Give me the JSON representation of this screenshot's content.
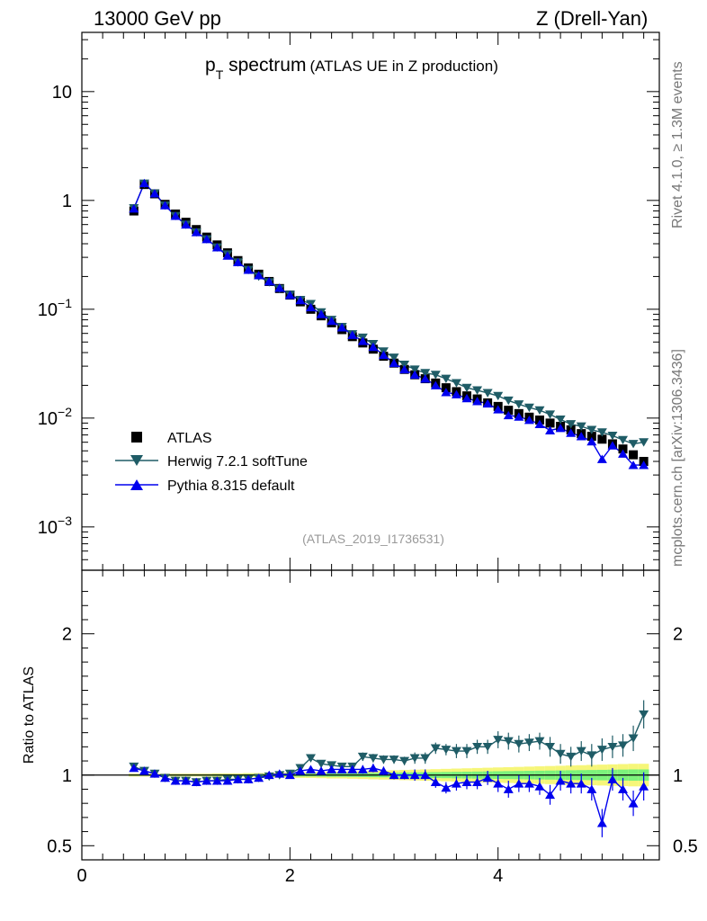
{
  "header": {
    "left": "13000 GeV pp",
    "right": "Z (Drell-Yan)"
  },
  "side_labels": {
    "rivet": "Rivet 4.1.0, ≥ 1.3M events",
    "mcplots": "mcplots.cern.ch [arXiv:1306.3436]"
  },
  "colors": {
    "data": "#000000",
    "herwig": "#1f5c66",
    "pythia": "#0000ee",
    "band_inner": "#7cf27c",
    "band_outer": "#f6f679"
  },
  "chart_data": {
    "type": "line",
    "title_main": "p",
    "title_sub": "T",
    "title_rest": " spectrum",
    "title_note": "(ATLAS UE in Z production)",
    "watermark": "(ATLAS_2019_I1736531)",
    "ylabel_ratio": "Ratio to ATLAS",
    "xlim": [
      0,
      5.55
    ],
    "ylim_main": [
      0.0004,
      35
    ],
    "ylim_ratio": [
      0.4,
      2.45
    ],
    "x_ticks": [
      "0",
      "2",
      "4"
    ],
    "y_ticks_main": [
      {
        "value": 10,
        "base": "10",
        "exp": ""
      },
      {
        "value": 1,
        "base": "1",
        "exp": ""
      },
      {
        "value": 0.1,
        "base": "10",
        "exp": "−1"
      },
      {
        "value": 0.01,
        "base": "10",
        "exp": "−2"
      },
      {
        "value": 0.001,
        "base": "10",
        "exp": "−3"
      }
    ],
    "y_ticks_ratio": [
      {
        "value": 2,
        "label": "2"
      },
      {
        "value": 1,
        "label": "1"
      },
      {
        "value": 0.5,
        "label": "0.5"
      }
    ],
    "legend": [
      "ATLAS",
      "Herwig 7.2.1 softTune",
      "Pythia 8.315 default"
    ],
    "x": [
      0.5,
      0.6,
      0.7,
      0.8,
      0.9,
      1.0,
      1.1,
      1.2,
      1.3,
      1.4,
      1.5,
      1.6,
      1.7,
      1.8,
      1.9,
      2.0,
      2.1,
      2.2,
      2.3,
      2.4,
      2.5,
      2.6,
      2.7,
      2.8,
      2.9,
      3.0,
      3.1,
      3.2,
      3.3,
      3.4,
      3.5,
      3.6,
      3.7,
      3.8,
      3.9,
      4.0,
      4.1,
      4.2,
      4.3,
      4.4,
      4.5,
      4.6,
      4.7,
      4.8,
      4.9,
      5.0,
      5.1,
      5.2,
      5.3,
      5.4
    ],
    "series": [
      {
        "name": "ATLAS",
        "values": [
          0.8,
          1.4,
          1.15,
          0.92,
          0.75,
          0.63,
          0.54,
          0.46,
          0.39,
          0.33,
          0.28,
          0.24,
          0.21,
          0.18,
          0.155,
          0.135,
          0.117,
          0.1,
          0.087,
          0.075,
          0.065,
          0.056,
          0.049,
          0.043,
          0.037,
          0.032,
          0.028,
          0.025,
          0.023,
          0.021,
          0.019,
          0.0175,
          0.016,
          0.015,
          0.0138,
          0.0128,
          0.0118,
          0.011,
          0.0102,
          0.0096,
          0.009,
          0.0084,
          0.0078,
          0.0072,
          0.0068,
          0.0064,
          0.0058,
          0.0052,
          0.0046,
          0.004
        ]
      },
      {
        "name": "Herwig 7.2.1 softTune",
        "values": [
          0.85,
          1.43,
          1.16,
          0.9,
          0.72,
          0.6,
          0.51,
          0.44,
          0.37,
          0.32,
          0.27,
          0.23,
          0.2,
          0.177,
          0.154,
          0.136,
          0.122,
          0.112,
          0.094,
          0.08,
          0.069,
          0.059,
          0.055,
          0.048,
          0.041,
          0.036,
          0.031,
          0.028,
          0.026,
          0.025,
          0.023,
          0.021,
          0.019,
          0.018,
          0.017,
          0.016,
          0.0145,
          0.0134,
          0.0125,
          0.0118,
          0.0108,
          0.0097,
          0.0088,
          0.0084,
          0.0078,
          0.0074,
          0.0069,
          0.0063,
          0.0058,
          0.006
        ]
      },
      {
        "name": "Pythia 8.315 default",
        "values": [
          0.84,
          1.44,
          1.16,
          0.9,
          0.72,
          0.6,
          0.51,
          0.44,
          0.37,
          0.31,
          0.27,
          0.23,
          0.205,
          0.18,
          0.157,
          0.135,
          0.121,
          0.104,
          0.09,
          0.078,
          0.068,
          0.058,
          0.051,
          0.045,
          0.038,
          0.032,
          0.028,
          0.025,
          0.023,
          0.02,
          0.0173,
          0.0165,
          0.0152,
          0.0143,
          0.0136,
          0.012,
          0.0106,
          0.0103,
          0.0096,
          0.0088,
          0.0077,
          0.0081,
          0.0073,
          0.0068,
          0.0061,
          0.0042,
          0.0056,
          0.0047,
          0.0037,
          0.0037
        ]
      }
    ],
    "ratio": {
      "herwig": [
        1.06,
        1.03,
        1.01,
        0.98,
        0.96,
        0.96,
        0.95,
        0.96,
        0.96,
        0.97,
        0.97,
        0.97,
        0.98,
        0.99,
        1.0,
        1.01,
        1.05,
        1.12,
        1.08,
        1.07,
        1.06,
        1.06,
        1.13,
        1.12,
        1.11,
        1.11,
        1.1,
        1.12,
        1.12,
        1.19,
        1.18,
        1.17,
        1.17,
        1.2,
        1.2,
        1.25,
        1.24,
        1.22,
        1.23,
        1.24,
        1.2,
        1.15,
        1.13,
        1.17,
        1.14,
        1.18,
        1.2,
        1.21,
        1.26,
        1.43
      ],
      "pythia": [
        1.05,
        1.03,
        1.01,
        0.98,
        0.96,
        0.96,
        0.95,
        0.96,
        0.96,
        0.96,
        0.97,
        0.97,
        0.98,
        1.0,
        1.01,
        1.0,
        1.03,
        1.04,
        1.03,
        1.04,
        1.04,
        1.04,
        1.04,
        1.05,
        1.03,
        1.0,
        1.0,
        1.0,
        1.0,
        0.95,
        0.91,
        0.94,
        0.95,
        0.95,
        0.98,
        0.94,
        0.9,
        0.94,
        0.94,
        0.92,
        0.86,
        0.96,
        0.94,
        0.94,
        0.9,
        0.66,
        0.97,
        0.9,
        0.8,
        0.92
      ],
      "herwig_err": [
        0.01,
        0.01,
        0.01,
        0.01,
        0.01,
        0.01,
        0.01,
        0.01,
        0.01,
        0.01,
        0.01,
        0.01,
        0.01,
        0.01,
        0.01,
        0.01,
        0.02,
        0.02,
        0.02,
        0.02,
        0.02,
        0.02,
        0.03,
        0.03,
        0.03,
        0.03,
        0.03,
        0.04,
        0.04,
        0.04,
        0.04,
        0.05,
        0.05,
        0.05,
        0.05,
        0.06,
        0.06,
        0.06,
        0.06,
        0.06,
        0.07,
        0.07,
        0.07,
        0.07,
        0.08,
        0.08,
        0.08,
        0.08,
        0.09,
        0.1
      ],
      "pythia_err": [
        0.01,
        0.01,
        0.01,
        0.01,
        0.01,
        0.01,
        0.01,
        0.01,
        0.01,
        0.01,
        0.01,
        0.01,
        0.01,
        0.01,
        0.01,
        0.01,
        0.02,
        0.02,
        0.02,
        0.02,
        0.02,
        0.02,
        0.03,
        0.03,
        0.03,
        0.03,
        0.03,
        0.04,
        0.04,
        0.04,
        0.04,
        0.05,
        0.05,
        0.05,
        0.05,
        0.06,
        0.06,
        0.06,
        0.06,
        0.06,
        0.07,
        0.07,
        0.07,
        0.07,
        0.08,
        0.1,
        0.08,
        0.08,
        0.09,
        0.1
      ],
      "band_inner": [
        0.005,
        0.005,
        0.005,
        0.005,
        0.005,
        0.005,
        0.005,
        0.005,
        0.006,
        0.006,
        0.006,
        0.007,
        0.007,
        0.008,
        0.008,
        0.009,
        0.01,
        0.01,
        0.011,
        0.012,
        0.012,
        0.013,
        0.014,
        0.015,
        0.016,
        0.017,
        0.018,
        0.019,
        0.02,
        0.021,
        0.022,
        0.023,
        0.024,
        0.025,
        0.026,
        0.027,
        0.028,
        0.029,
        0.03,
        0.031,
        0.032,
        0.033,
        0.034,
        0.035,
        0.036,
        0.037,
        0.038,
        0.039,
        0.04,
        0.04
      ],
      "band_outer": [
        0.01,
        0.01,
        0.01,
        0.01,
        0.01,
        0.01,
        0.01,
        0.01,
        0.012,
        0.012,
        0.012,
        0.014,
        0.014,
        0.016,
        0.016,
        0.018,
        0.02,
        0.02,
        0.022,
        0.024,
        0.024,
        0.026,
        0.028,
        0.03,
        0.032,
        0.034,
        0.036,
        0.038,
        0.04,
        0.042,
        0.044,
        0.046,
        0.048,
        0.05,
        0.052,
        0.054,
        0.056,
        0.058,
        0.06,
        0.062,
        0.064,
        0.066,
        0.068,
        0.07,
        0.072,
        0.074,
        0.076,
        0.078,
        0.08,
        0.08
      ]
    }
  }
}
